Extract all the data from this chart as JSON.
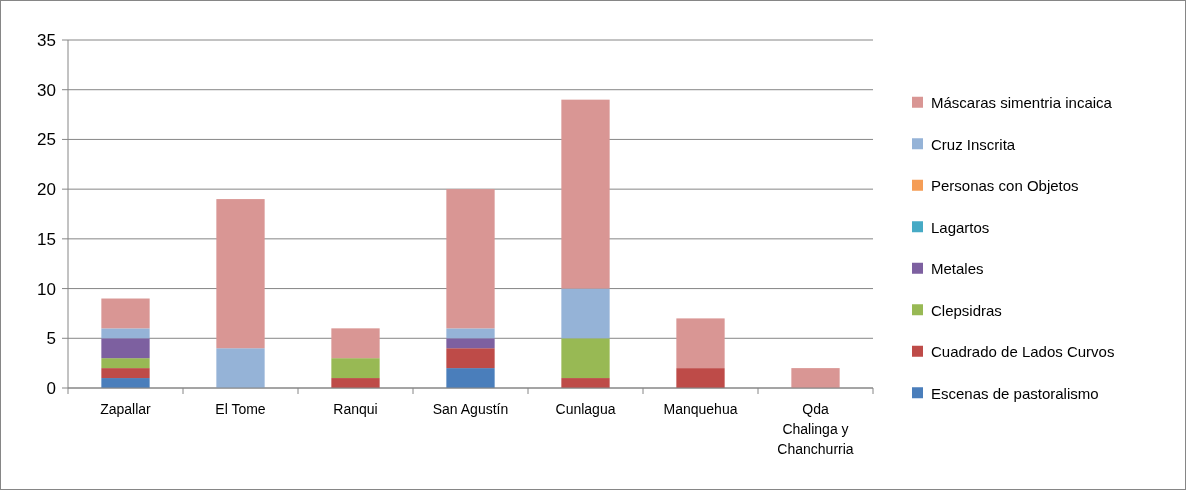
{
  "chart_data": {
    "type": "bar",
    "stacked": true,
    "categories": [
      "Zapallar",
      "El Tome",
      "Ranqui",
      "San Agustín",
      "Cunlagua",
      "Manquehua",
      "Qda Chalinga y Chanchurria"
    ],
    "series": [
      {
        "name": "Escenas de pastoralismo",
        "color": "#4a7ebb",
        "values": [
          1,
          0,
          0,
          2,
          0,
          0,
          0
        ]
      },
      {
        "name": "Cuadrado de Lados Curvos",
        "color": "#be4b48",
        "values": [
          1,
          0,
          1,
          2,
          1,
          2,
          0
        ]
      },
      {
        "name": "Clepsidras",
        "color": "#98b954",
        "values": [
          1,
          0,
          2,
          0,
          4,
          0,
          0
        ]
      },
      {
        "name": "Metales",
        "color": "#7d60a0",
        "values": [
          2,
          0,
          0,
          1,
          0,
          0,
          0
        ]
      },
      {
        "name": "Lagartos",
        "color": "#46aac5",
        "values": [
          0,
          0,
          0,
          0,
          0,
          0,
          0
        ]
      },
      {
        "name": "Personas con Objetos",
        "color": "#f59d56",
        "values": [
          0,
          0,
          0,
          0,
          0,
          0,
          0
        ]
      },
      {
        "name": "Cruz Inscrita",
        "color": "#95b3d7",
        "values": [
          1,
          4,
          0,
          1,
          5,
          0,
          0
        ]
      },
      {
        "name": "Máscaras simentria incaica",
        "color": "#d99694",
        "values": [
          3,
          15,
          3,
          14,
          19,
          5,
          2
        ]
      }
    ],
    "ylim": [
      0,
      35
    ],
    "yticks": [
      0,
      5,
      10,
      15,
      20,
      25,
      30,
      35
    ],
    "grid": "y",
    "legend": "right"
  }
}
